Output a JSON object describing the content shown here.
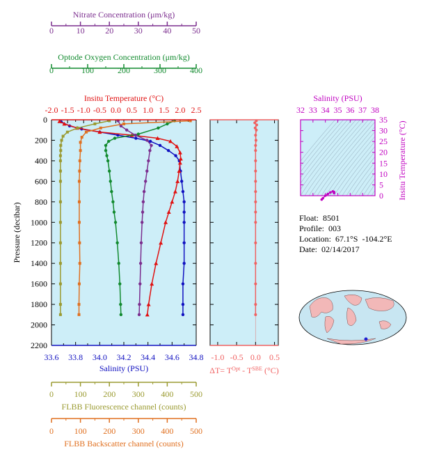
{
  "chart_data": {
    "type": "line",
    "main": {
      "ylabel": "Pressure (decibar)",
      "yticks": [
        0,
        200,
        400,
        600,
        800,
        1000,
        1200,
        1400,
        1600,
        1800,
        2000,
        2200
      ],
      "ylim": [
        2200,
        0
      ],
      "axes": [
        {
          "key": "nitrate",
          "label": "Nitrate Concentration (μm/kg)",
          "color": "#7b2d8e",
          "ticks": [
            0,
            10,
            20,
            30,
            40,
            50
          ],
          "lim": [
            0,
            50
          ]
        },
        {
          "key": "oxygen",
          "label": "Optode Oxygen Concentration (μm/kg)",
          "color": "#118a2e",
          "ticks": [
            0,
            100,
            200,
            300,
            400
          ],
          "lim": [
            0,
            400
          ]
        },
        {
          "key": "temp",
          "label": "Insitu Temperature (°C)",
          "color": "#e01010",
          "ticks": [
            "-2.0",
            "-1.5",
            "-1.0",
            "-0.5",
            "0.0",
            "0.5",
            "1.0",
            "1.5",
            "2.0",
            "2.5"
          ],
          "lim": [
            -2.0,
            2.5
          ]
        },
        {
          "key": "sal",
          "label": "Salinity (PSU)",
          "color": "#1010c0",
          "ticks": [
            "33.6",
            "33.8",
            "34.0",
            "34.2",
            "34.4",
            "34.6",
            "34.8"
          ],
          "lim": [
            33.6,
            34.8
          ]
        },
        {
          "key": "fluor",
          "label": "FLBB Fluorescence channel (counts)",
          "color": "#9a9a30",
          "ticks": [
            0,
            100,
            200,
            300,
            400,
            500
          ],
          "lim": [
            0,
            500
          ]
        },
        {
          "key": "backsc",
          "label": "FLBB Backscatter channel (counts)",
          "color": "#e07020",
          "ticks": [
            0,
            100,
            200,
            300,
            400,
            500
          ],
          "lim": [
            0,
            500
          ]
        }
      ],
      "series": [
        {
          "name": "Salinity",
          "axis": "sal",
          "color": "#1010c0",
          "marker": "circle",
          "points": [
            [
              33.68,
              20
            ],
            [
              33.75,
              60
            ],
            [
              33.85,
              90
            ],
            [
              34.0,
              120
            ],
            [
              34.15,
              150
            ],
            [
              34.3,
              180
            ],
            [
              34.42,
              210
            ],
            [
              34.5,
              250
            ],
            [
              34.57,
              300
            ],
            [
              34.63,
              350
            ],
            [
              34.66,
              400
            ],
            [
              34.67,
              500
            ],
            [
              34.68,
              600
            ],
            [
              34.69,
              700
            ],
            [
              34.7,
              800
            ],
            [
              34.7,
              900
            ],
            [
              34.7,
              1000
            ],
            [
              34.7,
              1200
            ],
            [
              34.7,
              1400
            ],
            [
              34.69,
              1600
            ],
            [
              34.69,
              1800
            ],
            [
              34.69,
              1900
            ]
          ]
        },
        {
          "name": "Insitu Temperature",
          "axis": "temp",
          "color": "#e01010",
          "marker": "triangle",
          "points": [
            [
              -1.75,
              15
            ],
            [
              -1.6,
              40
            ],
            [
              -1.2,
              80
            ],
            [
              -0.5,
              120
            ],
            [
              0.5,
              150
            ],
            [
              1.3,
              180
            ],
            [
              1.7,
              210
            ],
            [
              1.9,
              260
            ],
            [
              2.0,
              320
            ],
            [
              2.02,
              380
            ],
            [
              2.0,
              420
            ],
            [
              1.97,
              500
            ],
            [
              1.92,
              600
            ],
            [
              1.85,
              700
            ],
            [
              1.75,
              800
            ],
            [
              1.65,
              900
            ],
            [
              1.55,
              1000
            ],
            [
              1.4,
              1200
            ],
            [
              1.25,
              1400
            ],
            [
              1.12,
              1600
            ],
            [
              1.02,
              1800
            ],
            [
              0.98,
              1900
            ]
          ]
        },
        {
          "name": "Optode Oxygen",
          "axis": "oxygen",
          "color": "#118a2e",
          "marker": "circle",
          "points": [
            [
              340,
              10
            ],
            [
              320,
              40
            ],
            [
              295,
              80
            ],
            [
              240,
              140
            ],
            [
              175,
              180
            ],
            [
              158,
              210
            ],
            [
              150,
              250
            ],
            [
              150,
              300
            ],
            [
              153,
              350
            ],
            [
              156,
              400
            ],
            [
              160,
              500
            ],
            [
              163,
              600
            ],
            [
              166,
              700
            ],
            [
              170,
              800
            ],
            [
              173,
              900
            ],
            [
              177,
              1000
            ],
            [
              182,
              1200
            ],
            [
              186,
              1400
            ],
            [
              189,
              1600
            ],
            [
              191,
              1800
            ],
            [
              192,
              1900
            ]
          ]
        },
        {
          "name": "Nitrate",
          "axis": "nitrate",
          "color": "#7b2d8e",
          "marker": "circle",
          "points": [
            [
              23,
              10
            ],
            [
              24,
              60
            ],
            [
              26,
              100
            ],
            [
              29,
              150
            ],
            [
              33,
              200
            ],
            [
              34.5,
              250
            ],
            [
              34,
              300
            ],
            [
              33.5,
              400
            ],
            [
              33,
              500
            ],
            [
              32.5,
              600
            ],
            [
              32,
              700
            ],
            [
              31.7,
              800
            ],
            [
              31.5,
              900
            ],
            [
              31.3,
              1000
            ],
            [
              31,
              1200
            ],
            [
              30.8,
              1400
            ],
            [
              30.6,
              1600
            ],
            [
              30.4,
              1800
            ],
            [
              30.3,
              1900
            ]
          ]
        },
        {
          "name": "FLBB Fluorescence",
          "axis": "fluor",
          "color": "#9a9a30",
          "marker": "square",
          "points": [
            [
              200,
              10
            ],
            [
              150,
              40
            ],
            [
              90,
              80
            ],
            [
              55,
              120
            ],
            [
              40,
              160
            ],
            [
              35,
              200
            ],
            [
              32,
              250
            ],
            [
              32,
              300
            ],
            [
              31,
              350
            ],
            [
              31,
              400
            ],
            [
              31,
              500
            ],
            [
              31,
              600
            ],
            [
              31,
              800
            ],
            [
              31,
              1000
            ],
            [
              31,
              1200
            ],
            [
              31,
              1400
            ],
            [
              31,
              1600
            ],
            [
              31,
              1800
            ],
            [
              31,
              1900
            ]
          ]
        },
        {
          "name": "FLBB Backscatter",
          "axis": "backsc",
          "color": "#e07020",
          "marker": "square",
          "points": [
            [
              480,
              10
            ],
            [
              250,
              40
            ],
            [
              170,
              80
            ],
            [
              120,
              120
            ],
            [
              105,
              170
            ],
            [
              100,
              220
            ],
            [
              100,
              300
            ],
            [
              98,
              400
            ],
            [
              97,
              500
            ],
            [
              96,
              600
            ],
            [
              96,
              800
            ],
            [
              96,
              1000
            ],
            [
              97,
              1200
            ],
            [
              98,
              1400
            ],
            [
              96,
              1600
            ],
            [
              95,
              1800
            ],
            [
              95,
              1900
            ]
          ]
        }
      ]
    },
    "delta": {
      "xlabel": "ΔT= T^Opt - T^SBE (°C)",
      "xticks": [
        "-1.0",
        "-0.5",
        "0.0",
        "0.5"
      ],
      "xlim": [
        -1.2,
        0.6
      ],
      "color": "#f06060",
      "points": [
        [
          0.02,
          10
        ],
        [
          -0.02,
          30
        ],
        [
          0.03,
          50
        ],
        [
          -0.01,
          80
        ],
        [
          0.02,
          100
        ],
        [
          0.0,
          150
        ],
        [
          0.01,
          200
        ],
        [
          0.0,
          250
        ],
        [
          0.0,
          300
        ],
        [
          0.0,
          400
        ],
        [
          0.0,
          500
        ],
        [
          0.0,
          600
        ],
        [
          0.0,
          700
        ],
        [
          0.0,
          800
        ],
        [
          0.0,
          900
        ],
        [
          0.0,
          1000
        ],
        [
          0.0,
          1200
        ],
        [
          0.0,
          1400
        ],
        [
          0.0,
          1600
        ],
        [
          0.0,
          1800
        ],
        [
          0.0,
          1900
        ]
      ]
    },
    "ts": {
      "xlabel": "Salinity (PSU)",
      "ylabel": "Insitu Temperature (°C)",
      "xticks": [
        32,
        33,
        34,
        35,
        36,
        37,
        38
      ],
      "yticks": [
        0,
        5,
        10,
        15,
        20,
        25,
        30,
        35
      ],
      "xlim": [
        32,
        38
      ],
      "ylim": [
        0,
        35
      ],
      "color": "#c000c0",
      "points": [
        [
          33.7,
          -1.8
        ],
        [
          33.8,
          -1.2
        ],
        [
          34.0,
          0.0
        ],
        [
          34.2,
          0.8
        ],
        [
          34.4,
          1.5
        ],
        [
          34.6,
          2.0
        ],
        [
          34.7,
          1.7
        ],
        [
          34.7,
          1.2
        ]
      ]
    }
  },
  "info": {
    "float": "Float:  8501",
    "profile": "Profile:  003",
    "location": "Location:  67.1°S  -104.2°E",
    "date": "Date:  02/14/2017"
  }
}
